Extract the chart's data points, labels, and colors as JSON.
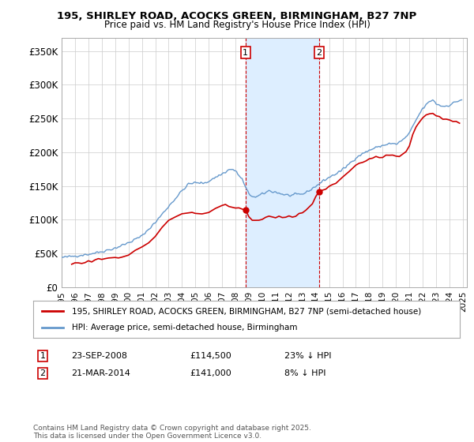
{
  "title": "195, SHIRLEY ROAD, ACOCKS GREEN, BIRMINGHAM, B27 7NP",
  "subtitle": "Price paid vs. HM Land Registry's House Price Index (HPI)",
  "ylim": [
    0,
    370000
  ],
  "yticks": [
    0,
    50000,
    100000,
    150000,
    200000,
    250000,
    300000,
    350000
  ],
  "ytick_labels": [
    "£0",
    "£50K",
    "£100K",
    "£150K",
    "£200K",
    "£250K",
    "£300K",
    "£350K"
  ],
  "marker1_price": 114500,
  "marker2_price": 141000,
  "legend_line1_label": "195, SHIRLEY ROAD, ACOCKS GREEN, BIRMINGHAM, B27 7NP (semi-detached house)",
  "legend_line2_label": "HPI: Average price, semi-detached house, Birmingham",
  "marker1_row": "23-SEP-2008",
  "marker1_val": "£114,500",
  "marker1_pct": "23% ↓ HPI",
  "marker2_row": "21-MAR-2014",
  "marker2_val": "£141,000",
  "marker2_pct": "8% ↓ HPI",
  "footer": "Contains HM Land Registry data © Crown copyright and database right 2025.\nThis data is licensed under the Open Government Licence v3.0.",
  "line_color_actual": "#cc0000",
  "line_color_hpi": "#6699cc",
  "shaded_region_color": "#ddeeff",
  "marker_box_color": "#cc0000",
  "background_color": "#ffffff",
  "grid_color": "#cccccc",
  "m1x": 2008.75,
  "m2x": 2014.25
}
